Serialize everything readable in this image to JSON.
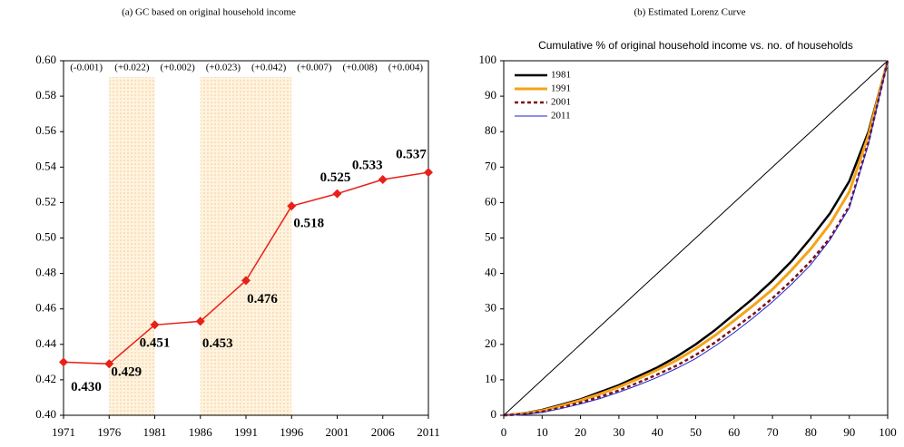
{
  "chart_data": [
    {
      "type": "line",
      "subtitle": "(a) GC based on original household income",
      "x": [
        1971,
        1976,
        1981,
        1986,
        1991,
        1996,
        2001,
        2006,
        2011
      ],
      "values": [
        0.43,
        0.429,
        0.451,
        0.453,
        0.476,
        0.518,
        0.525,
        0.533,
        0.537
      ],
      "value_labels": [
        "0.430",
        "0.429",
        "0.451",
        "0.453",
        "0.476",
        "0.518",
        "0.525",
        "0.533",
        "0.537"
      ],
      "value_label_colors": [
        "#000000",
        "#7a5a2a",
        "#000000",
        "#7a5a2a",
        "#7a5a2a",
        "#000000",
        "#000000",
        "#000000",
        "#000000"
      ],
      "color": "#e8201a",
      "annotations": [
        {
          "text": "(-0.001)",
          "color": "#000000"
        },
        {
          "text": "(+0.022)",
          "color": "#000000"
        },
        {
          "text": "(+0.002)",
          "color": "#000000"
        },
        {
          "text": "(+0.023)",
          "color": "#000000"
        },
        {
          "text": "(+0.042)",
          "color": "#000000"
        },
        {
          "text": "(+0.007)",
          "color": "#000000"
        },
        {
          "text": "(+0.008)",
          "color": "#000000"
        },
        {
          "text": "(+0.004)",
          "color": "#e8201a"
        }
      ],
      "shaded_ranges": [
        [
          1976,
          1981
        ],
        [
          1986,
          1996
        ]
      ],
      "xlim": [
        1971,
        2011
      ],
      "xticks": [
        1971,
        1976,
        1981,
        1986,
        1991,
        1996,
        2001,
        2006,
        2011
      ],
      "ylim": [
        0.4,
        0.6
      ],
      "yticks": [
        {
          "value": 0.4,
          "label": "0.40"
        },
        {
          "value": 0.42,
          "label": "0.42"
        },
        {
          "value": 0.44,
          "label": "0.44"
        },
        {
          "value": 0.46,
          "label": "0.46"
        },
        {
          "value": 0.48,
          "label": "0.48"
        },
        {
          "value": 0.5,
          "label": "0.50"
        },
        {
          "value": 0.52,
          "label": "0.52"
        },
        {
          "value": 0.54,
          "label": "0.54"
        },
        {
          "value": 0.56,
          "label": "0.56"
        },
        {
          "value": 0.58,
          "label": "0.58"
        },
        {
          "value": 0.6,
          "label": "0.60"
        }
      ]
    },
    {
      "type": "line",
      "subtitle": "(b) Estimated Lorenz Curve",
      "title": "Cumulative % of original household income vs. no. of households",
      "x": [
        0,
        5,
        10,
        15,
        20,
        25,
        30,
        35,
        40,
        45,
        50,
        55,
        60,
        65,
        70,
        75,
        80,
        85,
        90,
        95,
        100
      ],
      "series": [
        {
          "name": "1981",
          "color": "#000000",
          "width": 2.5,
          "dashed": false,
          "values": [
            0,
            0.5,
            1.5,
            3,
            4.5,
            6.5,
            8.5,
            11,
            13.5,
            16.5,
            20,
            24,
            28.5,
            33,
            38,
            43.5,
            50,
            57,
            66,
            80,
            100
          ]
        },
        {
          "name": "1991",
          "color": "#f5a31a",
          "width": 3,
          "dashed": false,
          "values": [
            0,
            0.4,
            1.3,
            2.7,
            4.2,
            6,
            8,
            10.3,
            12.8,
            15.5,
            18.8,
            22.5,
            26.7,
            31,
            35.5,
            41,
            47,
            54,
            63,
            79,
            100
          ]
        },
        {
          "name": "2001",
          "color": "#7a1010",
          "width": 2.5,
          "dashed": true,
          "values": [
            0,
            0.3,
            1,
            2.2,
            3.6,
            5.2,
            7,
            9.2,
            11.5,
            14,
            17,
            20.5,
            24.5,
            28.5,
            33,
            38,
            43.5,
            50,
            59,
            77,
            100
          ]
        },
        {
          "name": "2011",
          "color": "#2020d0",
          "width": 1,
          "dashed": false,
          "values": [
            0,
            0.2,
            0.8,
            1.9,
            3.2,
            4.7,
            6.5,
            8.5,
            10.7,
            13.2,
            16,
            19.5,
            23.3,
            27.5,
            32,
            37,
            42.5,
            49.5,
            58.5,
            76.5,
            100
          ]
        },
        {
          "color": "#000000",
          "width": 1,
          "dashed": false,
          "values": [
            0,
            5,
            10,
            15,
            20,
            25,
            30,
            35,
            40,
            45,
            50,
            55,
            60,
            65,
            70,
            75,
            80,
            85,
            90,
            95,
            100
          ]
        }
      ],
      "legend": "upper left",
      "xlim": [
        0,
        100
      ],
      "xticks": [
        0,
        10,
        20,
        30,
        40,
        50,
        60,
        70,
        80,
        90,
        100
      ],
      "ylim": [
        0,
        100
      ],
      "yticks": [
        0,
        10,
        20,
        30,
        40,
        50,
        60,
        70,
        80,
        90,
        100
      ]
    }
  ]
}
